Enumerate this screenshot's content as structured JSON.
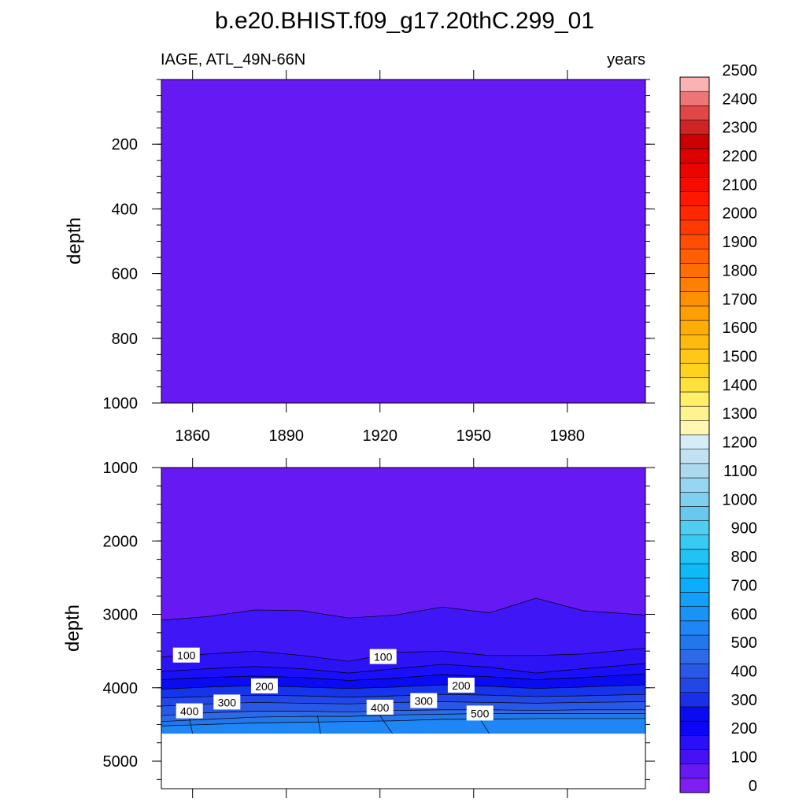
{
  "chart_data": {
    "type": "heatmap",
    "title": "b.e20.BHIST.f09_g17.20thC.299_01",
    "left_subtitle": "IAGE, ATL_49N-66N",
    "right_subtitle": "years",
    "panels": [
      {
        "name": "upper",
        "ylabel": "depth",
        "xlim": [
          1850,
          2005
        ],
        "ylim": [
          0,
          1000
        ],
        "y_reversed": true,
        "x_ticks": [
          "1860",
          "1890",
          "1920",
          "1950",
          "1980"
        ],
        "y_ticks": [
          "200",
          "400",
          "600",
          "800",
          "1000"
        ],
        "fill_color": "#6619f2"
      },
      {
        "name": "lower",
        "ylabel": "depth",
        "xlim": [
          1850,
          2005
        ],
        "ylim": [
          1000,
          5375
        ],
        "y_reversed": true,
        "y_ticks": [
          "1000",
          "2000",
          "3000",
          "4000",
          "5000"
        ],
        "data_bottom_depth": 4625,
        "fill_color": "#6619f2",
        "contours": [
          {
            "level": 50,
            "color": "#3f17f6",
            "depth": [
              3080,
              3030,
              2940,
              2950,
              3050,
              3010,
              2900,
              2980,
              2780,
              2950,
              3010
            ]
          },
          {
            "level": 100,
            "color": "#2c13f5",
            "depth": [
              3580,
              3540,
              3500,
              3560,
              3640,
              3520,
              3500,
              3560,
              3560,
              3540,
              3460
            ]
          },
          {
            "level": 150,
            "color": "#1910f8",
            "depth": [
              3780,
              3740,
              3710,
              3740,
              3800,
              3740,
              3680,
              3720,
              3800,
              3740,
              3670
            ]
          },
          {
            "level": 200,
            "color": "#0a0bf0",
            "depth": [
              3890,
              3860,
              3840,
              3860,
              3900,
              3870,
              3820,
              3850,
              3890,
              3860,
              3810
            ]
          },
          {
            "level": 250,
            "color": "#1634ea",
            "depth": [
              4020,
              3990,
              3970,
              3990,
              4010,
              3990,
              3960,
              3980,
              4010,
              3990,
              3960
            ]
          },
          {
            "level": 300,
            "color": "#2347e6",
            "depth": [
              4140,
              4120,
              4100,
              4110,
              4130,
              4110,
              4090,
              4100,
              4120,
              4110,
              4090
            ]
          },
          {
            "level": 350,
            "color": "#2a58e6",
            "depth": [
              4250,
              4220,
              4200,
              4210,
              4220,
              4200,
              4190,
              4200,
              4210,
              4200,
              4190
            ]
          },
          {
            "level": 400,
            "color": "#2e6ae8",
            "depth": [
              4380,
              4340,
              4320,
              4320,
              4330,
              4310,
              4300,
              4300,
              4310,
              4300,
              4300
            ]
          },
          {
            "level": 500,
            "color": "#2278ea",
            "depth": [
              4460,
              4430,
              4400,
              4390,
              4390,
              4370,
              4360,
              4350,
              4350,
              4350,
              4350
            ]
          },
          {
            "level": 550,
            "color": "#1e86f5",
            "depth": [
              4520,
              4500,
              4480,
              4470,
              4460,
              4450,
              4430,
              4430,
              4420,
              4420,
              4420
            ]
          }
        ],
        "contour_years": [
          1850,
          1865,
          1880,
          1895,
          1910,
          1925,
          1940,
          1955,
          1970,
          1985,
          2005
        ],
        "contour_labels": [
          {
            "text": "100",
            "year": 1858,
            "depth": 3560
          },
          {
            "text": "100",
            "year": 1921,
            "depth": 3580
          },
          {
            "text": "200",
            "year": 1883,
            "depth": 3980
          },
          {
            "text": "200",
            "year": 1946,
            "depth": 3970
          },
          {
            "text": "300",
            "year": 1871,
            "depth": 4200
          },
          {
            "text": "300",
            "year": 1934,
            "depth": 4180
          },
          {
            "text": "400",
            "year": 1859,
            "depth": 4320
          },
          {
            "text": "400",
            "year": 1920,
            "depth": 4270
          },
          {
            "text": "500",
            "year": 1952,
            "depth": 4350
          }
        ]
      }
    ],
    "colorbar": {
      "labels": [
        "0",
        "100",
        "200",
        "300",
        "400",
        "500",
        "600",
        "700",
        "800",
        "900",
        "1000",
        "1100",
        "1200",
        "1300",
        "1400",
        "1500",
        "1600",
        "1700",
        "1800",
        "1900",
        "2000",
        "2100",
        "2200",
        "2300",
        "2400",
        "2500"
      ],
      "colors": [
        "#7e1ef2",
        "#6619f2",
        "#4412f5",
        "#2a10f8",
        "#0c05f7",
        "#0a0bf0",
        "#1b2ee8",
        "#2347e6",
        "#2a58e6",
        "#2e6ae8",
        "#2278ea",
        "#1e86f5",
        "#1a93f8",
        "#14a0fa",
        "#0aaefb",
        "#0fb9f6",
        "#22c2f5",
        "#38caf3",
        "#50cef1",
        "#68c8ee",
        "#80cfef",
        "#98d6f0",
        "#add9ee",
        "#c2e2f2",
        "#d6ecf6",
        "#fff8b2",
        "#fff38f",
        "#fff068",
        "#ffe13e",
        "#ffd21f",
        "#ffc716",
        "#ffba0e",
        "#ffac08",
        "#ff9e05",
        "#ff9004",
        "#ff7f03",
        "#ff6e03",
        "#ff5e02",
        "#ff4d02",
        "#ff3a01",
        "#ff2800",
        "#ff1800",
        "#f70b00",
        "#ea0500",
        "#dd0200",
        "#cc0000",
        "#d02424",
        "#e04747",
        "#ee7575",
        "#fab2b2"
      ]
    }
  }
}
